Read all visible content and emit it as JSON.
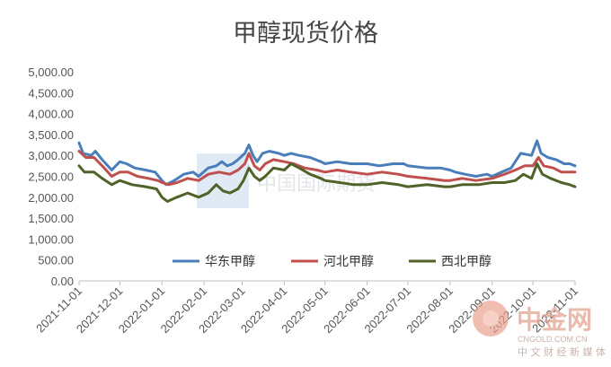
{
  "chart_data": {
    "type": "line",
    "title": "甲醇现货价格",
    "xlabel": "",
    "ylabel": "",
    "ylim": [
      0,
      5000
    ],
    "yticks": [
      "0.00",
      "500.00",
      "1,000.00",
      "1,500.00",
      "2,000.00",
      "2,500.00",
      "3,000.00",
      "3,500.00",
      "4,000.00",
      "4,500.00",
      "5,000.00"
    ],
    "xticks": [
      "2021-11-01",
      "2021-12-01",
      "2022-01-01",
      "2022-02-01",
      "2022-03-01",
      "2022-04-01",
      "2022-05-01",
      "2022-06-01",
      "2022-07-01",
      "2022-08-01",
      "2022-09-01",
      "2022-10-01",
      "2022-11-01"
    ],
    "x_range": [
      "2021-11-01",
      "2022-11-01"
    ],
    "grid": false,
    "legend": "bottom",
    "series": [
      {
        "name": "华东甲醇",
        "color": "#4a7ebb",
        "points": [
          [
            "2021-11-01",
            3300
          ],
          [
            "2021-11-04",
            3050
          ],
          [
            "2021-11-10",
            3000
          ],
          [
            "2021-11-13",
            3100
          ],
          [
            "2021-11-18",
            2900
          ],
          [
            "2021-11-25",
            2650
          ],
          [
            "2021-12-01",
            2850
          ],
          [
            "2021-12-06",
            2800
          ],
          [
            "2021-12-12",
            2700
          ],
          [
            "2021-12-20",
            2650
          ],
          [
            "2021-12-27",
            2600
          ],
          [
            "2022-01-01",
            2400
          ],
          [
            "2022-01-04",
            2300
          ],
          [
            "2022-01-10",
            2400
          ],
          [
            "2022-01-17",
            2550
          ],
          [
            "2022-01-24",
            2600
          ],
          [
            "2022-01-28",
            2500
          ],
          [
            "2022-02-04",
            2700
          ],
          [
            "2022-02-10",
            2750
          ],
          [
            "2022-02-14",
            2850
          ],
          [
            "2022-02-18",
            2750
          ],
          [
            "2022-02-22",
            2800
          ],
          [
            "2022-02-26",
            2900
          ],
          [
            "2022-03-03",
            3050
          ],
          [
            "2022-03-06",
            3250
          ],
          [
            "2022-03-09",
            3000
          ],
          [
            "2022-03-12",
            2850
          ],
          [
            "2022-03-16",
            3050
          ],
          [
            "2022-03-21",
            3100
          ],
          [
            "2022-03-28",
            3050
          ],
          [
            "2022-04-01",
            3000
          ],
          [
            "2022-04-06",
            3050
          ],
          [
            "2022-04-12",
            3000
          ],
          [
            "2022-04-20",
            2950
          ],
          [
            "2022-04-28",
            2850
          ],
          [
            "2022-05-01",
            2800
          ],
          [
            "2022-05-10",
            2850
          ],
          [
            "2022-05-20",
            2800
          ],
          [
            "2022-06-01",
            2800
          ],
          [
            "2022-06-10",
            2750
          ],
          [
            "2022-06-20",
            2800
          ],
          [
            "2022-06-28",
            2800
          ],
          [
            "2022-07-01",
            2750
          ],
          [
            "2022-07-15",
            2700
          ],
          [
            "2022-07-25",
            2700
          ],
          [
            "2022-08-01",
            2650
          ],
          [
            "2022-08-05",
            2600
          ],
          [
            "2022-08-12",
            2550
          ],
          [
            "2022-08-20",
            2500
          ],
          [
            "2022-08-28",
            2550
          ],
          [
            "2022-09-01",
            2500
          ],
          [
            "2022-09-08",
            2600
          ],
          [
            "2022-09-15",
            2700
          ],
          [
            "2022-09-22",
            3050
          ],
          [
            "2022-09-30",
            3000
          ],
          [
            "2022-10-04",
            3350
          ],
          [
            "2022-10-07",
            3050
          ],
          [
            "2022-10-12",
            2950
          ],
          [
            "2022-10-18",
            2900
          ],
          [
            "2022-10-24",
            2800
          ],
          [
            "2022-10-28",
            2800
          ],
          [
            "2022-11-01",
            2750
          ]
        ]
      },
      {
        "name": "河北甲醇",
        "color": "#c0504d",
        "points": [
          [
            "2021-11-01",
            3100
          ],
          [
            "2021-11-06",
            2950
          ],
          [
            "2021-11-12",
            2950
          ],
          [
            "2021-11-18",
            2750
          ],
          [
            "2021-11-25",
            2500
          ],
          [
            "2021-12-01",
            2600
          ],
          [
            "2021-12-07",
            2600
          ],
          [
            "2021-12-14",
            2500
          ],
          [
            "2021-12-22",
            2450
          ],
          [
            "2021-12-29",
            2400
          ],
          [
            "2022-01-01",
            2350
          ],
          [
            "2022-01-06",
            2300
          ],
          [
            "2022-01-12",
            2350
          ],
          [
            "2022-01-20",
            2450
          ],
          [
            "2022-01-28",
            2400
          ],
          [
            "2022-02-04",
            2550
          ],
          [
            "2022-02-12",
            2600
          ],
          [
            "2022-02-20",
            2550
          ],
          [
            "2022-02-26",
            2650
          ],
          [
            "2022-03-03",
            2800
          ],
          [
            "2022-03-06",
            3050
          ],
          [
            "2022-03-10",
            2750
          ],
          [
            "2022-03-14",
            2650
          ],
          [
            "2022-03-18",
            2800
          ],
          [
            "2022-03-24",
            2900
          ],
          [
            "2022-04-01",
            2850
          ],
          [
            "2022-04-08",
            2800
          ],
          [
            "2022-04-16",
            2700
          ],
          [
            "2022-04-25",
            2650
          ],
          [
            "2022-05-01",
            2600
          ],
          [
            "2022-05-10",
            2650
          ],
          [
            "2022-05-20",
            2600
          ],
          [
            "2022-06-01",
            2550
          ],
          [
            "2022-06-12",
            2600
          ],
          [
            "2022-06-24",
            2550
          ],
          [
            "2022-07-01",
            2500
          ],
          [
            "2022-07-15",
            2450
          ],
          [
            "2022-07-28",
            2400
          ],
          [
            "2022-08-01",
            2400
          ],
          [
            "2022-08-10",
            2450
          ],
          [
            "2022-08-20",
            2400
          ],
          [
            "2022-09-01",
            2450
          ],
          [
            "2022-09-10",
            2550
          ],
          [
            "2022-09-18",
            2650
          ],
          [
            "2022-09-25",
            2750
          ],
          [
            "2022-10-01",
            2750
          ],
          [
            "2022-10-05",
            2950
          ],
          [
            "2022-10-09",
            2750
          ],
          [
            "2022-10-16",
            2700
          ],
          [
            "2022-10-22",
            2600
          ],
          [
            "2022-11-01",
            2600
          ]
        ]
      },
      {
        "name": "西北甲醇",
        "color": "#4f6228",
        "points": [
          [
            "2021-11-01",
            2750
          ],
          [
            "2021-11-05",
            2600
          ],
          [
            "2021-11-12",
            2600
          ],
          [
            "2021-11-18",
            2450
          ],
          [
            "2021-11-25",
            2300
          ],
          [
            "2021-12-01",
            2400
          ],
          [
            "2021-12-10",
            2300
          ],
          [
            "2021-12-20",
            2250
          ],
          [
            "2021-12-28",
            2200
          ],
          [
            "2022-01-01",
            2000
          ],
          [
            "2022-01-05",
            1900
          ],
          [
            "2022-01-12",
            2000
          ],
          [
            "2022-01-20",
            2100
          ],
          [
            "2022-01-28",
            2000
          ],
          [
            "2022-02-04",
            2100
          ],
          [
            "2022-02-10",
            2300
          ],
          [
            "2022-02-15",
            2150
          ],
          [
            "2022-02-20",
            2100
          ],
          [
            "2022-02-26",
            2200
          ],
          [
            "2022-03-02",
            2400
          ],
          [
            "2022-03-06",
            2700
          ],
          [
            "2022-03-10",
            2500
          ],
          [
            "2022-03-14",
            2400
          ],
          [
            "2022-03-18",
            2500
          ],
          [
            "2022-03-24",
            2700
          ],
          [
            "2022-04-01",
            2650
          ],
          [
            "2022-04-06",
            2800
          ],
          [
            "2022-04-12",
            2700
          ],
          [
            "2022-04-20",
            2550
          ],
          [
            "2022-04-28",
            2450
          ],
          [
            "2022-05-01",
            2400
          ],
          [
            "2022-05-12",
            2350
          ],
          [
            "2022-05-22",
            2300
          ],
          [
            "2022-06-01",
            2300
          ],
          [
            "2022-06-12",
            2350
          ],
          [
            "2022-06-24",
            2300
          ],
          [
            "2022-07-01",
            2250
          ],
          [
            "2022-07-15",
            2300
          ],
          [
            "2022-07-28",
            2250
          ],
          [
            "2022-08-01",
            2250
          ],
          [
            "2022-08-10",
            2300
          ],
          [
            "2022-08-22",
            2300
          ],
          [
            "2022-09-01",
            2350
          ],
          [
            "2022-09-10",
            2350
          ],
          [
            "2022-09-18",
            2400
          ],
          [
            "2022-09-24",
            2550
          ],
          [
            "2022-09-30",
            2450
          ],
          [
            "2022-10-04",
            2800
          ],
          [
            "2022-10-08",
            2550
          ],
          [
            "2022-10-14",
            2450
          ],
          [
            "2022-10-22",
            2350
          ],
          [
            "2022-10-28",
            2300
          ],
          [
            "2022-11-01",
            2250
          ]
        ]
      }
    ]
  },
  "watermark": {
    "center_text": "中国国际期货",
    "logo_name": "中金网",
    "logo_domain": "CNGOLD.COM.CN",
    "logo_tagline": "中 文 财 经 新 媒 体"
  }
}
